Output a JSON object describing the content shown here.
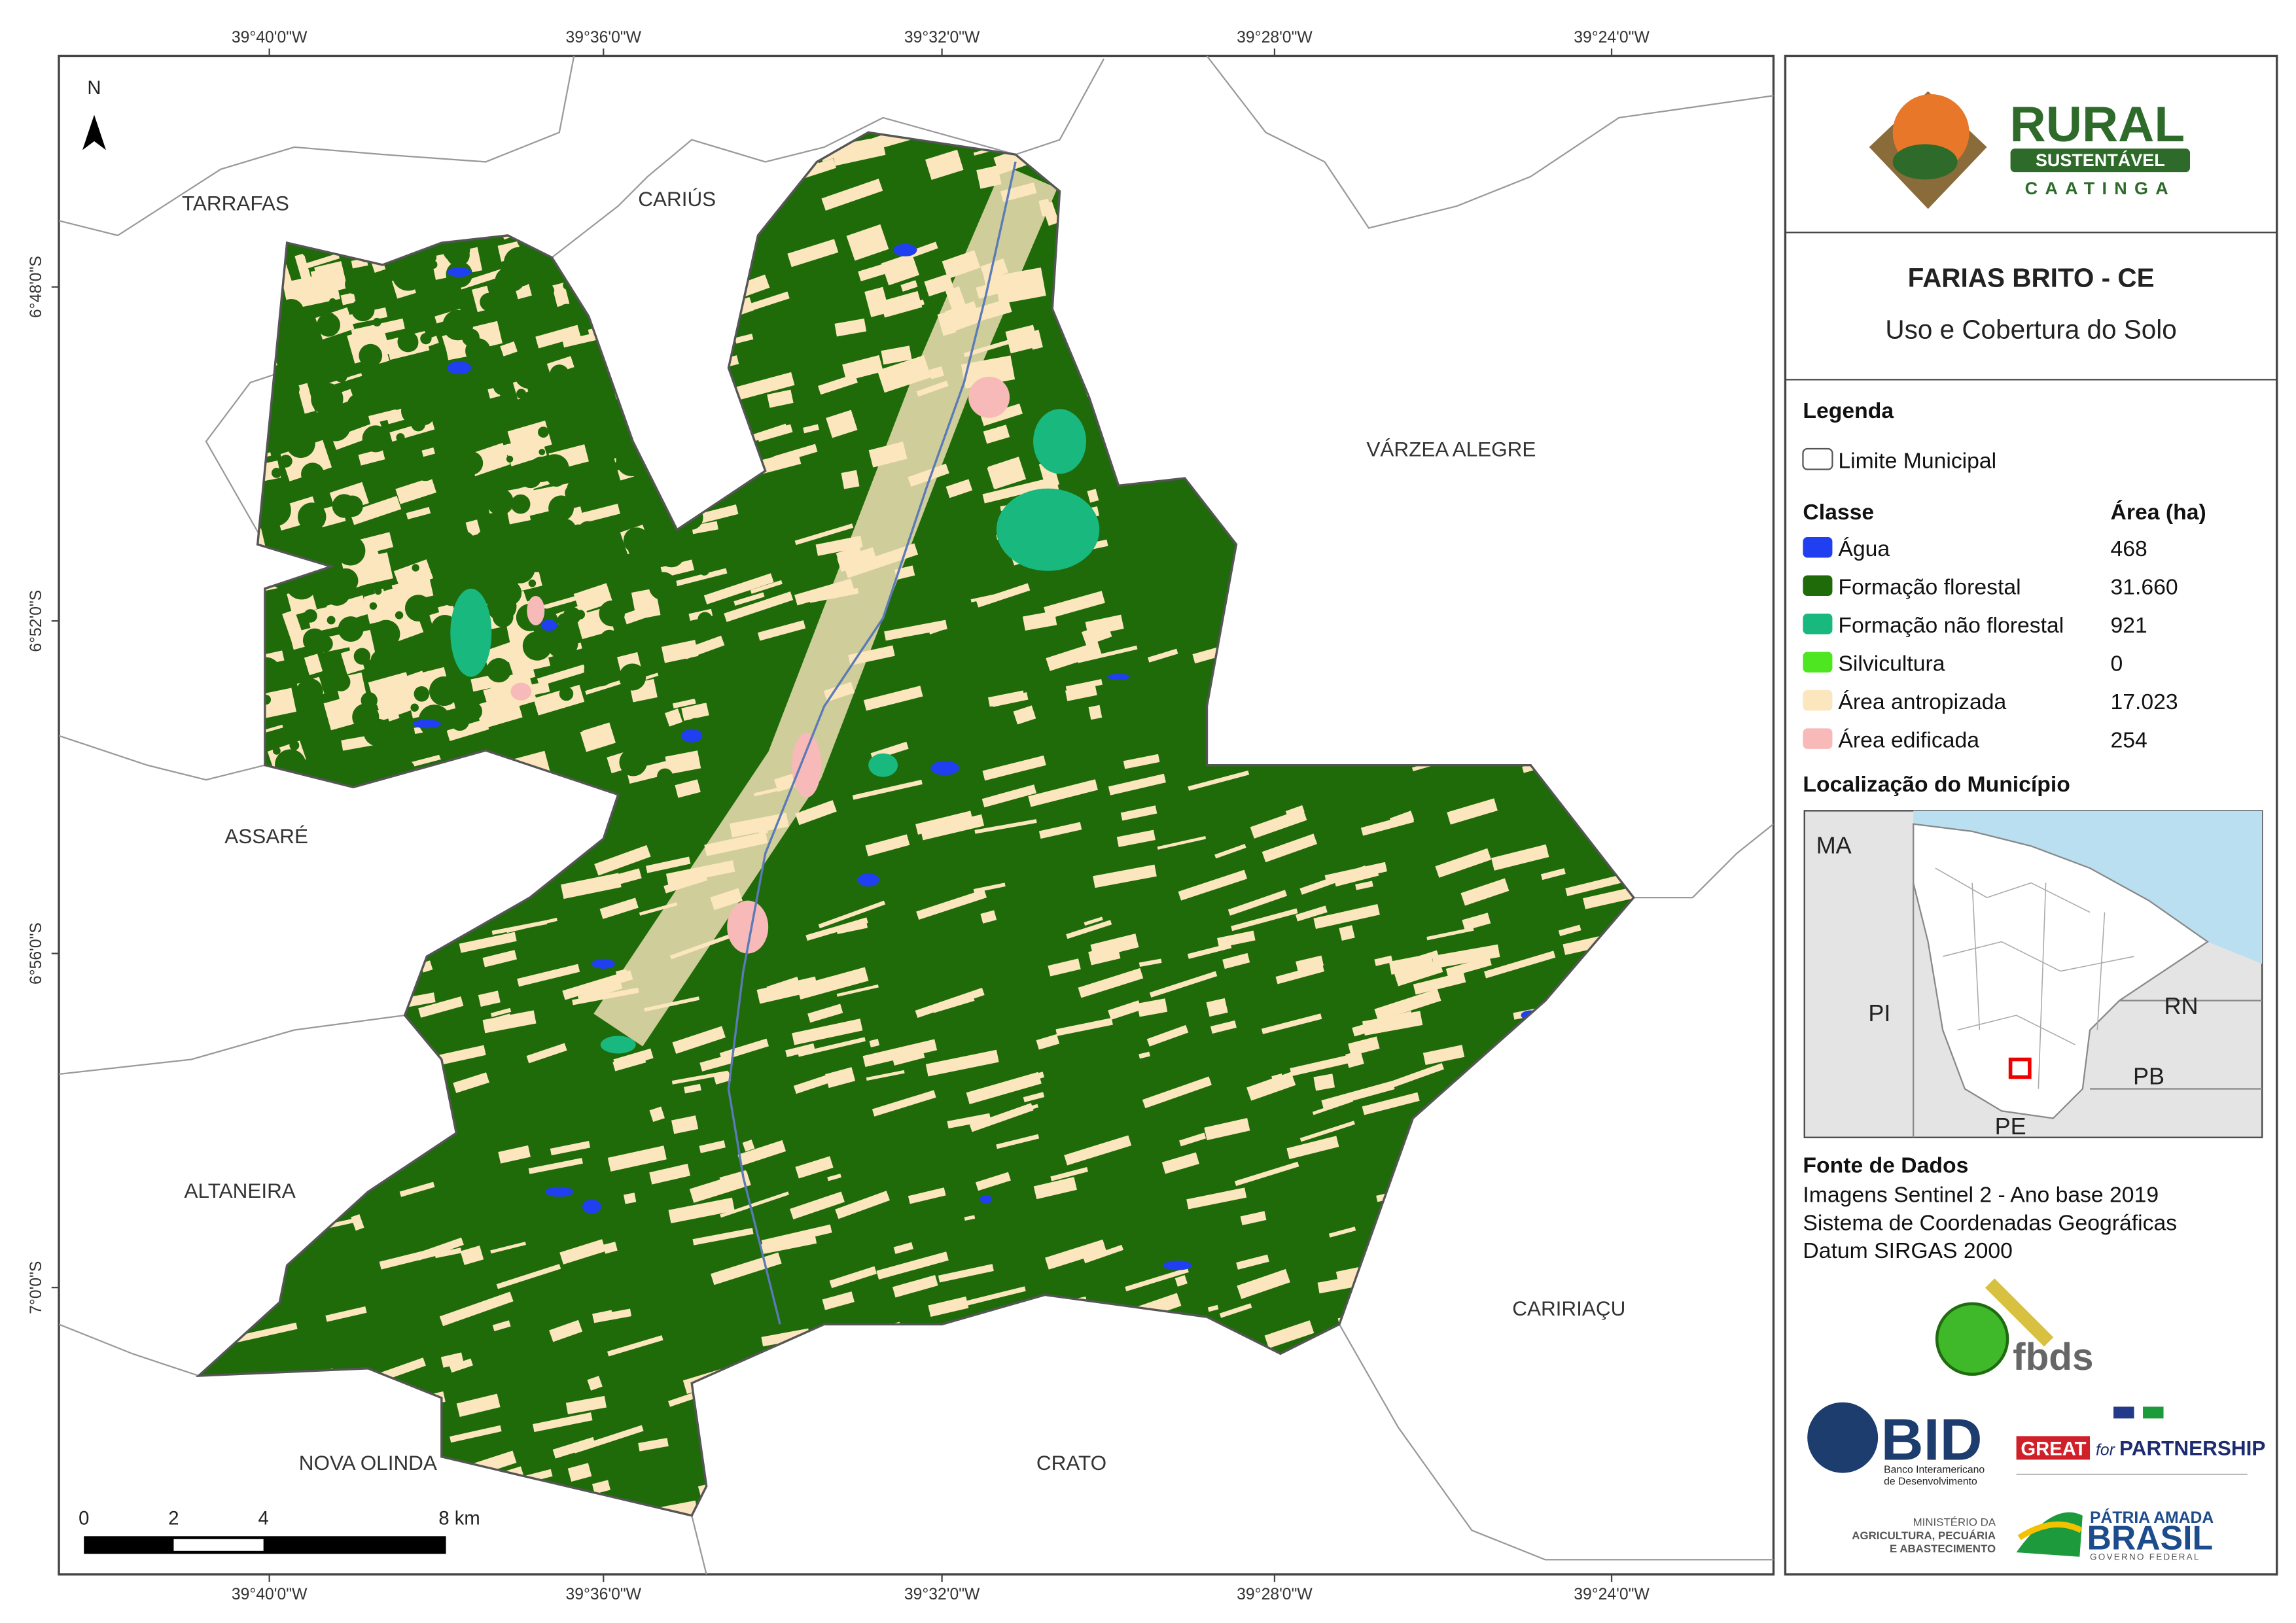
{
  "map": {
    "north": "N",
    "x_labels": [
      "39°40'0\"W",
      "39°36'0\"W",
      "39°32'0\"W",
      "39°28'0\"W",
      "39°24'0\"W"
    ],
    "y_labels": [
      "6°48'0\"S",
      "6°52'0\"S",
      "6°56'0\"S",
      "7°0'0\"S"
    ],
    "places": [
      "TARRAFAS",
      "CARIÚS",
      "VÁRZEA ALEGRE",
      "ASSARÉ",
      "ALTANEIRA",
      "NOVA OLINDA",
      "CRATO",
      "CARIRIAÇU"
    ],
    "scale": [
      "0",
      "2",
      "4",
      "8 km"
    ]
  },
  "header": {
    "logo": {
      "title": "RURAL",
      "subtitle": "SUSTENTÁVEL",
      "tagline": "CAATINGA"
    },
    "title": "FARIAS BRITO - CE",
    "subtitle": "Uso e Cobertura do Solo"
  },
  "legend": {
    "title": "Legenda",
    "boundary": "Limite Municipal",
    "class_header": "Classe",
    "area_header": "Área (ha)",
    "classes": [
      {
        "name": "Água",
        "area": "468",
        "color": "#1f3ff0"
      },
      {
        "name": "Formação florestal",
        "area": "31.660",
        "color": "#1f6b0a"
      },
      {
        "name": "Formação não florestal",
        "area": "921",
        "color": "#18b87f"
      },
      {
        "name": "Silvicultura",
        "area": "0",
        "color": "#4ee620"
      },
      {
        "name": "Área antropizada",
        "area": "17.023",
        "color": "#fbe6bd"
      },
      {
        "name": "Área edificada",
        "area": "254",
        "color": "#f8b9b9"
      }
    ]
  },
  "location": {
    "title": "Localização do Município",
    "labels": [
      "MA",
      "PI",
      "RN",
      "PB",
      "PE"
    ]
  },
  "sources": {
    "title": "Fonte de Dados",
    "lines": [
      "Imagens Sentinel 2 - Ano base 2019",
      "Sistema de Coordenadas Geográficas",
      "Datum SIRGAS 2000"
    ]
  },
  "partners": {
    "fbds": "fbds",
    "bid": "BID",
    "bid_name": [
      "Banco Interamericano",
      "de Desenvolvimento"
    ],
    "great": "GREAT",
    "great_for": "for",
    "great_partnership": "PARTNERSHIP",
    "ministry": [
      "MINISTÉRIO DA",
      "AGRICULTURA, PECUÁRIA",
      "E ABASTECIMENTO"
    ],
    "brasil_top": "PÁTRIA AMADA",
    "brasil": "BRASIL",
    "brasil_gov": "GOVERNO FEDERAL"
  }
}
